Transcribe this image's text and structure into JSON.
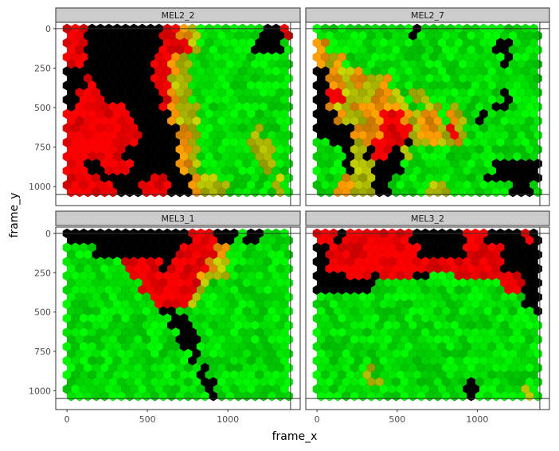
{
  "chart_data": {
    "type": "heatmap",
    "subtype": "hexbin-facets",
    "xlabel": "frame_x",
    "ylabel": "frame_y",
    "x_range": [
      -70,
      1450
    ],
    "y_range_reversed": [
      -40,
      1120
    ],
    "x_ticks": [
      0,
      500,
      1000
    ],
    "x_tick_labels": [
      "0",
      "500",
      "1000"
    ],
    "y_ticks": [
      0,
      250,
      500,
      750,
      1000
    ],
    "y_tick_labels": [
      "0",
      "250",
      "500",
      "750",
      "1000"
    ],
    "reference_lines": {
      "x": 1390,
      "y_top": 0,
      "y_bottom": 1050
    },
    "colors": {
      "low": "#000000",
      "mid_red": "#ff0000",
      "mid_orange": "#ff9900",
      "high": "#00ee00",
      "strip_bg": "#cccccc",
      "panel_border": "#333333"
    },
    "panels": [
      {
        "label": "MEL2_2",
        "grid_summary": [
          "RRKKKKKKKKRROYGGGGGGGKKR",
          "RRKKKKKKKKRRRYGGGGGGKKKG",
          "RRKKKKKKKRROYGGGGGGGGGGG",
          "KKKKKKKKKRROYGGGGGGGGGGG",
          "KKRKKKKKKRRYYGGGGGGGGGGG",
          "KRRRKKKKKKROYGGGGGGGGGGG",
          "KRRRRRKKKKROYYGGGGGGGGGG",
          "RRRRRRRKKKKOYYGGGGGGGGGG",
          "RRRRRRRRKKKKOYGGGGGGYGGG",
          "RRRRRRRRKKKKOYGGGGGYYYGG",
          "RRRRRRKKKKKKOYGGGGGGYYGG",
          "RRKKRRRKKKKKOYGGGGGGGYGG",
          "RRRRKKKKKRRKKOYYGGGGGGYG",
          "RRRRRKKKRRRKKOYYYGGGGGYG"
        ]
      },
      {
        "label": "MEL2_7",
        "grid_summary": [
          "GGGGGGGGGGKGGGGGGGGGGGGG",
          "OGGGGGGGGGGGGGGGGGGKKGGG",
          "OYOGGGGGGGGGGGGGGGGGKGGG",
          "KOYYOGGGGGGGGGGGGGGGGGGG",
          "KOOYOYYOGGGGGGGGGGGGGGGG",
          "KRRYYYOOYGYYGGGGGGGGKGGG",
          "KOYYOOOOOYGGYGYGGGGKKGGG",
          "KKOYYOORROYOOGOYGKGGGGGG",
          "KKKKOOORRRYOOYRYGGGGGGGG",
          "GKKKYORRRKYYOYYOGGGGGGGG",
          "GGGKYKRRKYGGGGGGGGGGGGGG",
          "GGGKYYKKKGGGGGGGGGGKKKKK",
          "GGGOYYKKGGGGGGGGGGKKKKKK",
          "GGOOYYKKGGGGYYGGGGGGGKKG"
        ]
      },
      {
        "label": "MEL3_1",
        "grid_summary": [
          "KKKKKKKKKKKKKRRRKKGKKGGG",
          "GGGKKKKKKKKKRRRROGGGGGGG",
          "GGGGGGRRRRKRRRROYGGGGGGG",
          "GGGGGGGRRRRRRROYYGGGGGGG",
          "GGGGGGGGRRRRRRYGGGGGGGGG",
          "GGGGGGGGGRRRRYGGGGGGGGGG",
          "GGGGGGGGGGKKGGGGGGGGGGGG",
          "GGGGGGGGGGGKKGGGGGGGGGGG",
          "GGGGGGGGGGGGKKGGGGGGGGGG",
          "GGGGGGGGGGGGKKGGGGGGGGGG",
          "GGGGGGGGGGGGGKGGGGGGGGGG",
          "GGGGGGGGGGGGGGKGGGGGGGGG",
          "GGGGGGGGGGGGGGKKGGGGGGGG",
          "GGGGGGGGGGGGGGGKGGGGGGGG"
        ]
      },
      {
        "label": "MEL3_2",
        "grid_summary": [
          "RRKRRRRRRRKKKKKKRRKKKKRK",
          "KRRRRRRRRRRKKKKKRRRRKKKK",
          "KRRRRRRRRRRRRRRRRRRRKKKK",
          "KKKRRRKRRRKKGGGRRRRRRRKK",
          "KKKKKKGGGGGGGGGGGGGGRRKK",
          "GGGGGGGGGGGGGGGGGGGGGGKK",
          "GGGGGGGGGGGGGGGGGGGGGGGK",
          "GGGGGGGGGGGGGGGGGGGGGGGG",
          "GGGGGGGGGGGGGGGGGGGGGGGG",
          "GGGGGGGGGGGGGGGGGGGGGGGG",
          "GGGGGGGGGGGGGGGGGGGGGGGG",
          "GGGGGYGGGGGGGGGGGGGGGGGG",
          "GGGGGYYGGGGGGGGGKGGGGGGG",
          "GGGGGGGGGGGGGGGGKGGGGGYG"
        ]
      }
    ]
  }
}
